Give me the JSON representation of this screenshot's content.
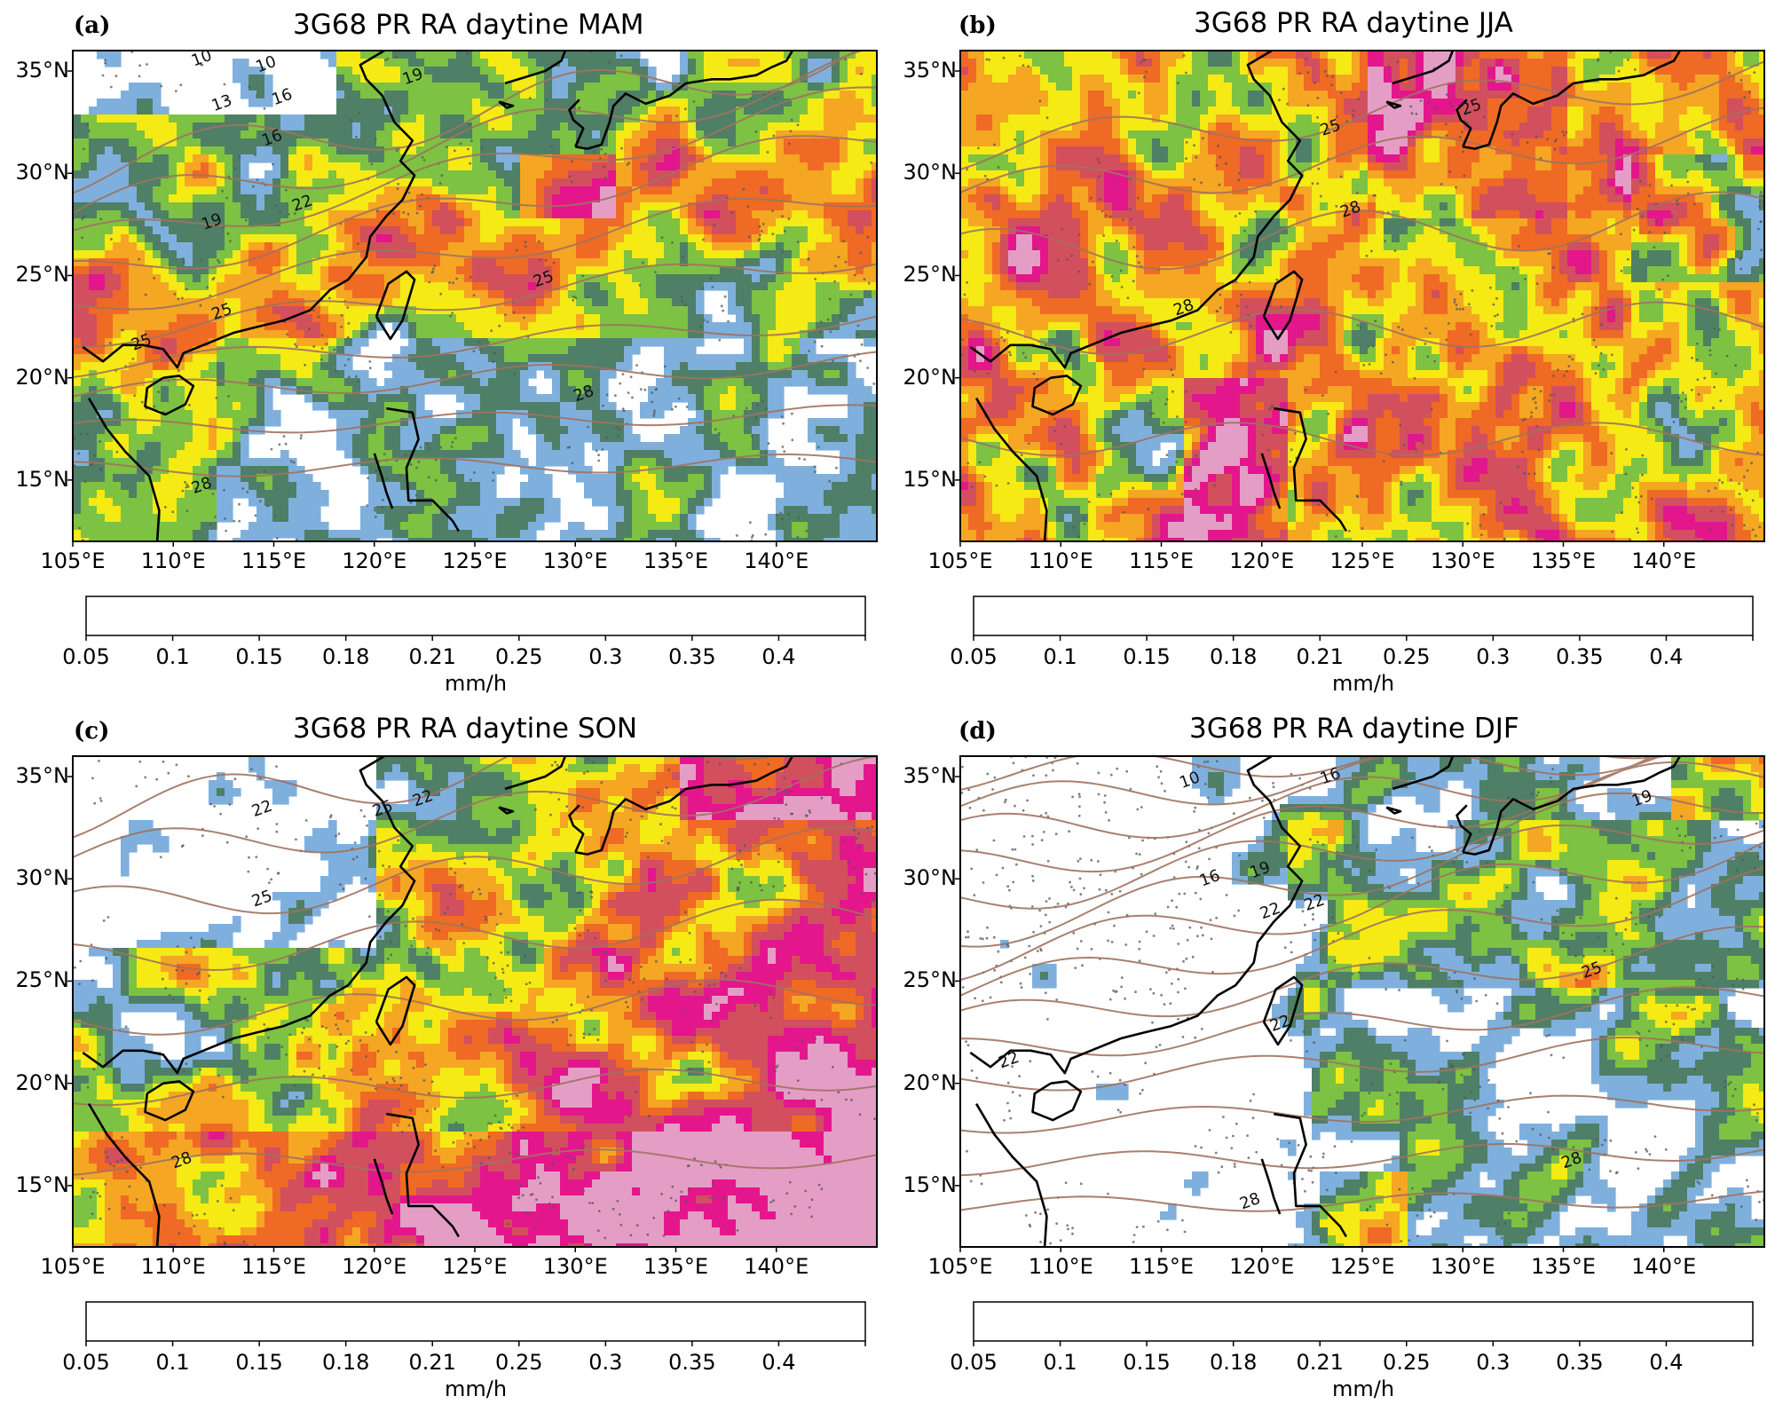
{
  "colorbar": {
    "bounds": [
      "0.05",
      "0.1",
      "0.15",
      "0.18",
      "0.21",
      "0.25",
      "0.3",
      "0.35",
      "0.4"
    ],
    "colors": [
      "#7fb0dd",
      "#4f7f66",
      "#7dc242",
      "#f5ea14",
      "#f5a623",
      "#ef6a24",
      "#d24f5e",
      "#e3168c",
      "#e49ec6"
    ],
    "unit": "mm/h"
  },
  "axes": {
    "lat_labels": [
      "35°N",
      "30°N",
      "25°N",
      "20°N",
      "15°N"
    ],
    "lon_labels": [
      "105°E",
      "110°E",
      "115°E",
      "120°E",
      "125°E",
      "130°E",
      "135°E",
      "140°E"
    ]
  },
  "panels": [
    {
      "letter": "(a)",
      "title": "3G68 PR RA daytine MAM",
      "contour_labels": [
        "10",
        "10",
        "13",
        "16",
        "16",
        "19",
        "19",
        "22",
        "25",
        "25",
        "25",
        "28",
        "28"
      ]
    },
    {
      "letter": "(b)",
      "title": "3G68 PR RA daytine JJA",
      "contour_labels": [
        "25",
        "25",
        "28",
        "28"
      ]
    },
    {
      "letter": "(c)",
      "title": "3G68 PR RA daytine SON",
      "contour_labels": [
        "22",
        "22",
        "25",
        "25",
        "28"
      ]
    },
    {
      "letter": "(d)",
      "title": "3G68 PR RA daytine DJF",
      "contour_labels": [
        "10",
        "16",
        "16",
        "19",
        "19",
        "22",
        "22",
        "22",
        "22",
        "25",
        "28",
        "28"
      ]
    }
  ]
}
